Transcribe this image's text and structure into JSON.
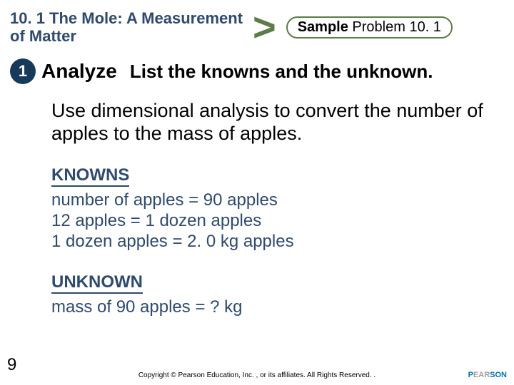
{
  "header": {
    "section_title": "10. 1 The Mole: A Measure­ment of Matter",
    "chevron": ">",
    "sample": {
      "bold": "Sample",
      "rest": " Problem 10. 1"
    }
  },
  "step": {
    "number": "1",
    "label": "Analyze",
    "text": "List the knowns and the unknown."
  },
  "body": {
    "paragraph": "Use dimensional analysis to convert the number of apples to the mass of apples.",
    "knowns_label": "KNOWNS",
    "knowns": [
      "number of apples = 90 apples",
      "12 apples = 1 dozen apples",
      "1 dozen apples = 2. 0 kg apples"
    ],
    "unknown_label": "UNKNOWN",
    "unknown": "mass of 90 apples = ? kg"
  },
  "page_number": "9",
  "footer": "Copyright © Pearson Education, Inc. , or its affiliates. All Rights Reserved. .",
  "logo": "PEARSON",
  "colors": {
    "title_color": "#2f4a6d",
    "chevron_color": "#5a7d4a",
    "badge_border": "#5a7d4a",
    "circle_bg": "#173a5a",
    "knowns_color": "#2f4a6d",
    "background": "#ffffff"
  }
}
